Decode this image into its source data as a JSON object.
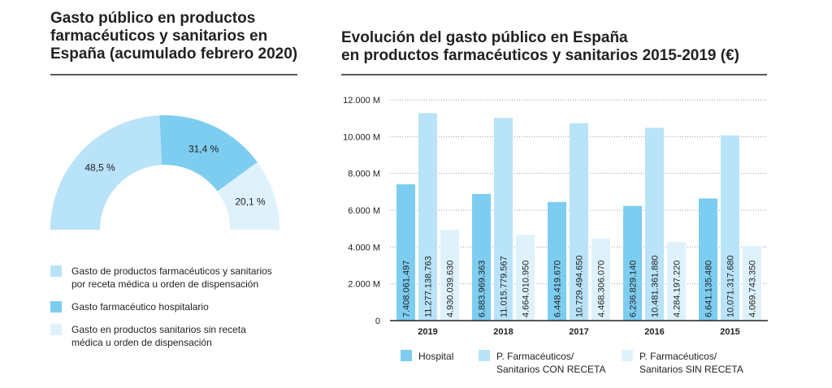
{
  "chart_data": [
    {
      "type": "pie",
      "title": "Gasto público en productos farmacéuticos y sanitarios en España (acumulado febrero 2020)",
      "categories": [
        "Gasto de productos farmacéuticos y sanitarios por receta médica u orden de dispensación",
        "Gasto farmacéutico hospitalario",
        "Gasto en productos sanitarios sin receta médica u orden de dispensación"
      ],
      "values": [
        48.5,
        31.4,
        20.1
      ],
      "value_labels": [
        "48,5 %",
        "31,4 %",
        "20,1 %"
      ],
      "colors": [
        "#b8e3f8",
        "#7dcdf0",
        "#dff2fc"
      ]
    },
    {
      "type": "bar",
      "title": "Evolución del gasto público en España\nen productos farmacéuticos y sanitarios 2015-2019 (€)",
      "categories": [
        "2019",
        "2018",
        "2017",
        "2016",
        "2015"
      ],
      "series": [
        {
          "name": "Hospital",
          "color": "#7dcdf0",
          "values": [
            7408061497,
            6883969363,
            6448419670,
            6236829140,
            6641135480
          ],
          "value_labels": [
            "7.408.061.497",
            "6.883.969.363",
            "6.448.419.670",
            "6.236.829.140",
            "6.641.135.480"
          ]
        },
        {
          "name": "P. Farmacéuticos/ Sanitarios CON RECETA",
          "color": "#b8e3f8",
          "values": [
            11277138763,
            11015779567,
            10729494650,
            10481361880,
            10071317680
          ],
          "value_labels": [
            "11.277.138.763",
            "11.015.779.567",
            "10.729.494.650",
            "10.481.361.880",
            "10.071.317.680"
          ]
        },
        {
          "name": "P. Farmacéuticos/ Sanitarios SIN RECETA",
          "color": "#dff2fc",
          "values": [
            4930039630,
            4664010950,
            4468306070,
            4284197220,
            4069743350
          ],
          "value_labels": [
            "4.930.039.630",
            "4.664.010.950",
            "4.468.306.070",
            "4.284.197.220",
            "4.069.743.350"
          ]
        }
      ],
      "ylim": [
        0,
        12000000000
      ],
      "yticks": [
        0,
        {
          "value": 2000000000,
          "label": "2.000 M"
        },
        {
          "value": 4000000000,
          "label": "4.000 M"
        },
        {
          "value": 6000000000,
          "label": "6.000 M"
        },
        {
          "value": 8000000000,
          "label": "8.000 M"
        },
        {
          "value": 10000000000,
          "label": "10.000 M"
        },
        {
          "value": 12000000000,
          "label": "12.000 M"
        }
      ],
      "grid": true
    }
  ]
}
